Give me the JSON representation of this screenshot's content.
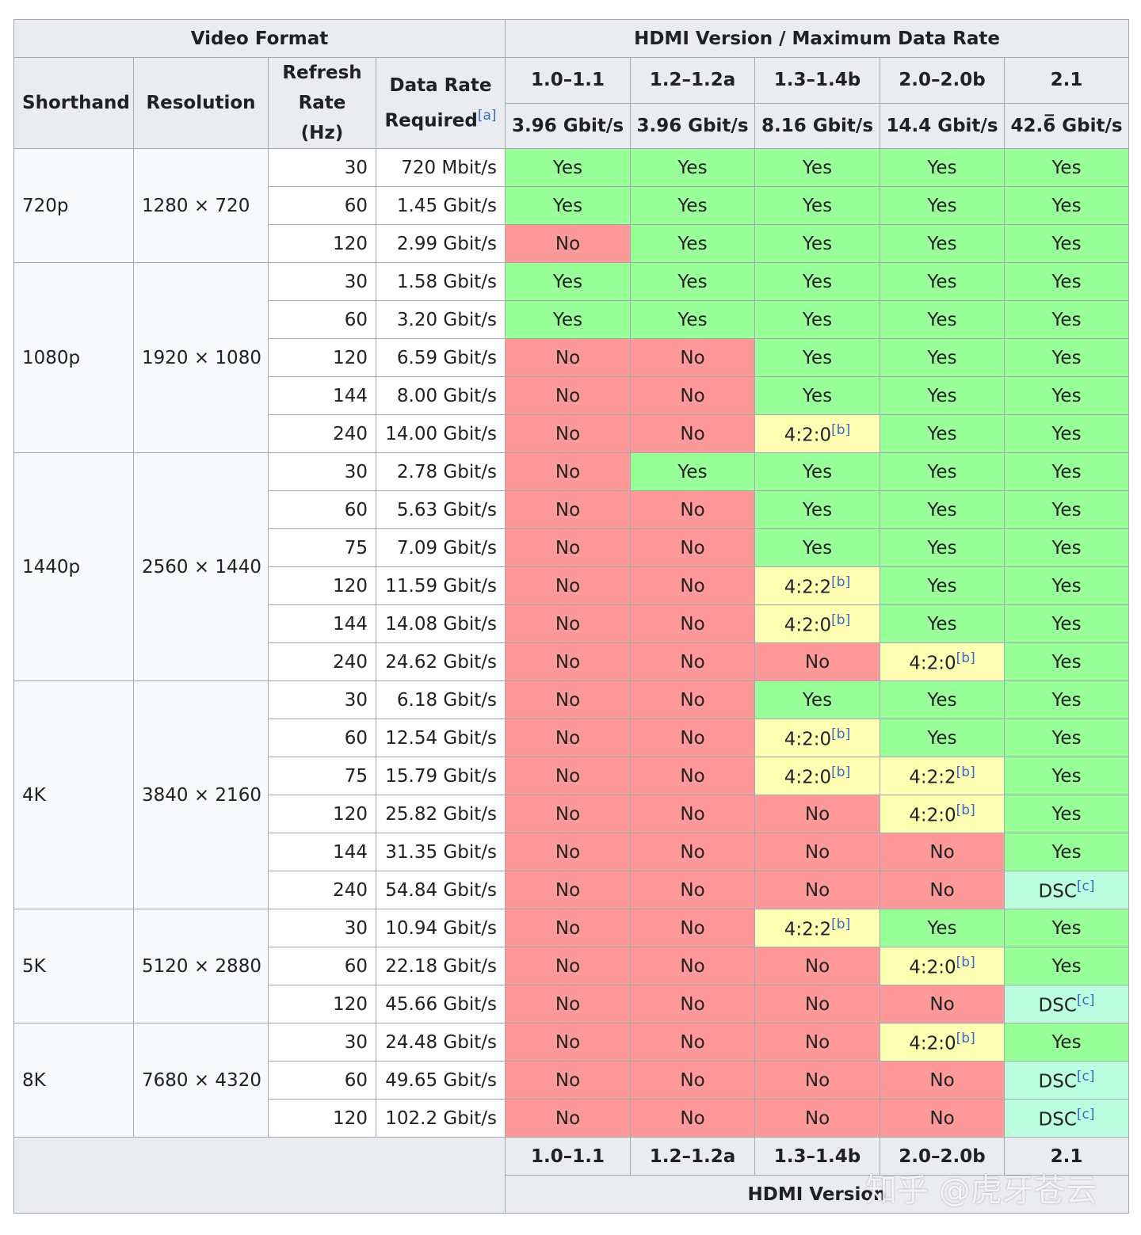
{
  "header": {
    "video_format": "Video Format",
    "hdmi": "HDMI Version / Maximum Data Rate",
    "columns": {
      "shorthand": "Shorthand",
      "resolution": "Resolution",
      "refresh": "Refresh Rate (Hz)",
      "data_rate": "Data Rate Required",
      "data_rate_note": "[a]"
    },
    "versions": [
      {
        "version": "1.0–1.1",
        "rate": "3.96 Gbit/s"
      },
      {
        "version": "1.2–1.2a",
        "rate": "3.96 Gbit/s"
      },
      {
        "version": "1.3–1.4b",
        "rate": "8.16 Gbit/s"
      },
      {
        "version": "2.0–2.0b",
        "rate": "14.4 Gbit/s"
      },
      {
        "version": "2.1",
        "rate": "42.6̅ Gbit/s"
      }
    ]
  },
  "groups": [
    {
      "shorthand": "720p",
      "resolution": "1280 × 720",
      "rows": [
        {
          "refresh": 30,
          "rate": "720 Mbit/s",
          "support": [
            "Yes",
            "Yes",
            "Yes",
            "Yes",
            "Yes"
          ]
        },
        {
          "refresh": 60,
          "rate": "1.45 Gbit/s",
          "support": [
            "Yes",
            "Yes",
            "Yes",
            "Yes",
            "Yes"
          ]
        },
        {
          "refresh": 120,
          "rate": "2.99 Gbit/s",
          "support": [
            "No",
            "Yes",
            "Yes",
            "Yes",
            "Yes"
          ]
        }
      ]
    },
    {
      "shorthand": "1080p",
      "resolution": "1920 × 1080",
      "rows": [
        {
          "refresh": 30,
          "rate": "1.58 Gbit/s",
          "support": [
            "Yes",
            "Yes",
            "Yes",
            "Yes",
            "Yes"
          ]
        },
        {
          "refresh": 60,
          "rate": "3.20 Gbit/s",
          "support": [
            "Yes",
            "Yes",
            "Yes",
            "Yes",
            "Yes"
          ]
        },
        {
          "refresh": 120,
          "rate": "6.59 Gbit/s",
          "support": [
            "No",
            "No",
            "Yes",
            "Yes",
            "Yes"
          ]
        },
        {
          "refresh": 144,
          "rate": "8.00 Gbit/s",
          "support": [
            "No",
            "No",
            "Yes",
            "Yes",
            "Yes"
          ]
        },
        {
          "refresh": 240,
          "rate": "14.00 Gbit/s",
          "support": [
            "No",
            "No",
            {
              "text": "4:2:0",
              "note": "[b]"
            },
            "Yes",
            "Yes"
          ]
        }
      ]
    },
    {
      "shorthand": "1440p",
      "resolution": "2560 × 1440",
      "rows": [
        {
          "refresh": 30,
          "rate": "2.78 Gbit/s",
          "support": [
            "No",
            "Yes",
            "Yes",
            "Yes",
            "Yes"
          ]
        },
        {
          "refresh": 60,
          "rate": "5.63 Gbit/s",
          "support": [
            "No",
            "No",
            "Yes",
            "Yes",
            "Yes"
          ]
        },
        {
          "refresh": 75,
          "rate": "7.09 Gbit/s",
          "support": [
            "No",
            "No",
            "Yes",
            "Yes",
            "Yes"
          ]
        },
        {
          "refresh": 120,
          "rate": "11.59 Gbit/s",
          "support": [
            "No",
            "No",
            {
              "text": "4:2:2",
              "note": "[b]"
            },
            "Yes",
            "Yes"
          ]
        },
        {
          "refresh": 144,
          "rate": "14.08 Gbit/s",
          "support": [
            "No",
            "No",
            {
              "text": "4:2:0",
              "note": "[b]"
            },
            "Yes",
            "Yes"
          ]
        },
        {
          "refresh": 240,
          "rate": "24.62 Gbit/s",
          "support": [
            "No",
            "No",
            "No",
            {
              "text": "4:2:0",
              "note": "[b]"
            },
            "Yes"
          ]
        }
      ]
    },
    {
      "shorthand": "4K",
      "resolution": "3840 × 2160",
      "rows": [
        {
          "refresh": 30,
          "rate": "6.18 Gbit/s",
          "support": [
            "No",
            "No",
            "Yes",
            "Yes",
            "Yes"
          ]
        },
        {
          "refresh": 60,
          "rate": "12.54 Gbit/s",
          "support": [
            "No",
            "No",
            {
              "text": "4:2:0",
              "note": "[b]"
            },
            "Yes",
            "Yes"
          ]
        },
        {
          "refresh": 75,
          "rate": "15.79 Gbit/s",
          "support": [
            "No",
            "No",
            {
              "text": "4:2:0",
              "note": "[b]"
            },
            {
              "text": "4:2:2",
              "note": "[b]"
            },
            "Yes"
          ]
        },
        {
          "refresh": 120,
          "rate": "25.82 Gbit/s",
          "support": [
            "No",
            "No",
            "No",
            {
              "text": "4:2:0",
              "note": "[b]"
            },
            "Yes"
          ]
        },
        {
          "refresh": 144,
          "rate": "31.35 Gbit/s",
          "support": [
            "No",
            "No",
            "No",
            "No",
            "Yes"
          ]
        },
        {
          "refresh": 240,
          "rate": "54.84 Gbit/s",
          "support": [
            "No",
            "No",
            "No",
            "No",
            {
              "text": "DSC",
              "note": "[c]"
            }
          ]
        }
      ]
    },
    {
      "shorthand": "5K",
      "resolution": "5120 × 2880",
      "rows": [
        {
          "refresh": 30,
          "rate": "10.94 Gbit/s",
          "support": [
            "No",
            "No",
            {
              "text": "4:2:2",
              "note": "[b]"
            },
            "Yes",
            "Yes"
          ]
        },
        {
          "refresh": 60,
          "rate": "22.18 Gbit/s",
          "support": [
            "No",
            "No",
            "No",
            {
              "text": "4:2:0",
              "note": "[b]"
            },
            "Yes"
          ]
        },
        {
          "refresh": 120,
          "rate": "45.66 Gbit/s",
          "support": [
            "No",
            "No",
            "No",
            "No",
            {
              "text": "DSC",
              "note": "[c]"
            }
          ]
        }
      ]
    },
    {
      "shorthand": "8K",
      "resolution": "7680 × 4320",
      "rows": [
        {
          "refresh": 30,
          "rate": "24.48 Gbit/s",
          "support": [
            "No",
            "No",
            "No",
            {
              "text": "4:2:0",
              "note": "[b]"
            },
            "Yes"
          ]
        },
        {
          "refresh": 60,
          "rate": "49.65 Gbit/s",
          "support": [
            "No",
            "No",
            "No",
            "No",
            {
              "text": "DSC",
              "note": "[c]"
            }
          ]
        },
        {
          "refresh": 120,
          "rate": "102.2 Gbit/s",
          "support": [
            "No",
            "No",
            "No",
            "No",
            {
              "text": "DSC",
              "note": "[c]"
            }
          ]
        }
      ]
    }
  ],
  "footer": {
    "versions": [
      "1.0–1.1",
      "1.2–1.2a",
      "1.3–1.4b",
      "2.0–2.0b",
      "2.1"
    ],
    "label": "HDMI Version"
  },
  "watermark": "知乎 @虎牙苍云"
}
